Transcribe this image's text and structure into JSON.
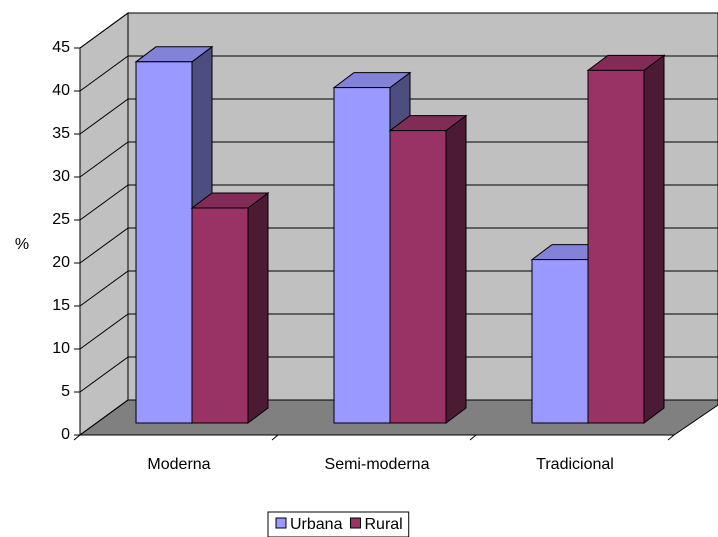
{
  "chart_data": {
    "type": "bar3d",
    "categories": [
      "Moderna",
      "Semi-moderna",
      "Tradicional"
    ],
    "series": [
      {
        "name": "Urbana",
        "color": "#9999ff",
        "values": [
          42,
          39,
          19
        ]
      },
      {
        "name": "Rural",
        "color": "#993366",
        "values": [
          25,
          34,
          41
        ]
      }
    ],
    "ylabel": "%",
    "ylim": [
      0,
      45
    ],
    "yticks": [
      0,
      5,
      10,
      15,
      20,
      25,
      30,
      35,
      40,
      45
    ],
    "grid": true,
    "legend": "bottom"
  }
}
